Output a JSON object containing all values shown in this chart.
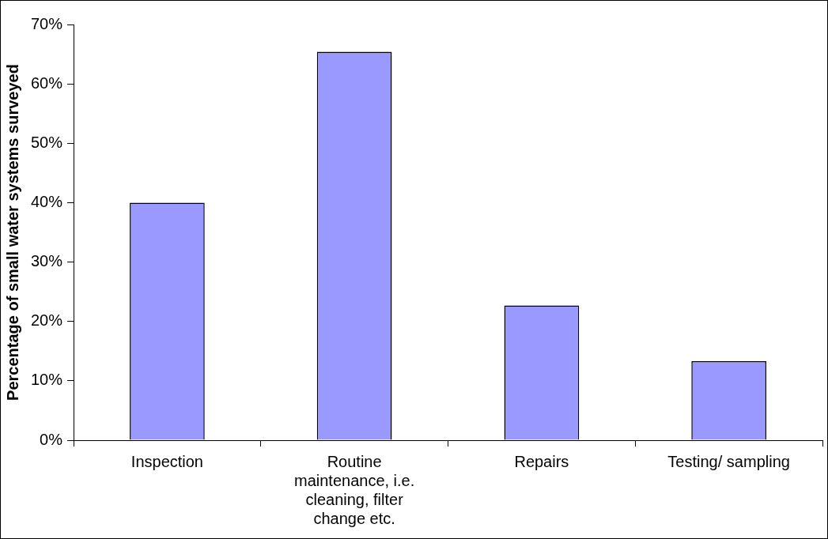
{
  "chart_data": {
    "type": "bar",
    "ylabel": "Percentage of small water systems surveyed",
    "categories": [
      "Inspection",
      "Routine maintenance, i.e. cleaning, filter change etc.",
      "Repairs",
      "Testing/ sampling"
    ],
    "values": [
      40,
      65.4,
      22.7,
      13.3
    ],
    "color": "#9999ff",
    "ylim": [
      0,
      70
    ],
    "yticks": [
      {
        "value": 0,
        "label": "0%"
      },
      {
        "value": 10,
        "label": "10%"
      },
      {
        "value": 20,
        "label": "20%"
      },
      {
        "value": 30,
        "label": "30%"
      },
      {
        "value": 40,
        "label": "40%"
      },
      {
        "value": 50,
        "label": "50%"
      },
      {
        "value": 60,
        "label": "60%"
      },
      {
        "value": 70,
        "label": "70%"
      }
    ],
    "grid": false,
    "legend": false
  }
}
